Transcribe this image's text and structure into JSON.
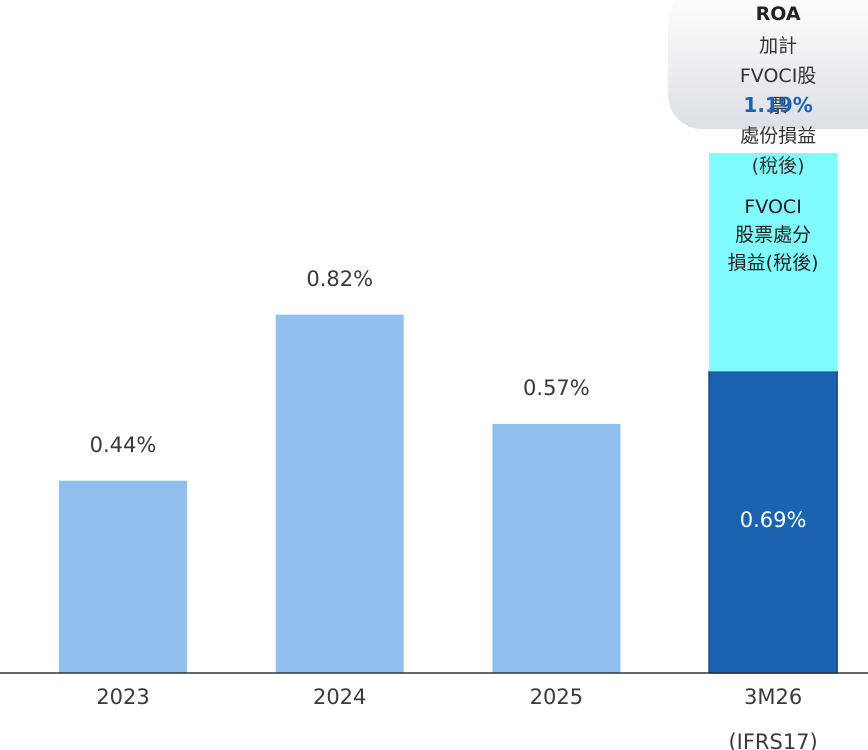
{
  "chart_data": {
    "type": "bar",
    "stacked": true,
    "categories": [
      "2023",
      "2024",
      "2025",
      "3M26\n(IFRS17)"
    ],
    "series": [
      {
        "colors": [
          "#92c0ee",
          "#92c0ee",
          "#92c0ee",
          "#1a63b0"
        ],
        "values": [
          0.44,
          0.82,
          0.57,
          0.69
        ],
        "value_labels": [
          "0.44%",
          "0.82%",
          "0.57%",
          "0.69%"
        ]
      },
      {
        "name": "FVOCI\n股票處分\n損益(稅後)",
        "color": "#80fbff",
        "values": [
          null,
          null,
          null,
          0.5
        ]
      }
    ],
    "annotation": {
      "title": "ROA",
      "text": "加計FVOCI股票\n處份損益(稅後)",
      "value": 1.19,
      "label": "1.19%"
    },
    "ylim": [
      0,
      1.5
    ]
  }
}
